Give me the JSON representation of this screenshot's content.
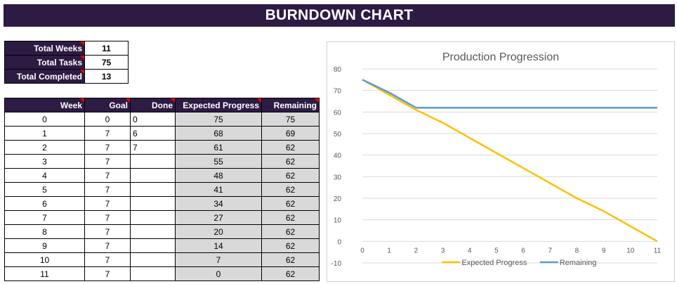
{
  "title": "BURNDOWN CHART",
  "summary": [
    {
      "label": "Total Weeks",
      "value": "11"
    },
    {
      "label": "Total Tasks",
      "value": "75"
    },
    {
      "label": "Total Completed",
      "value": "13"
    }
  ],
  "table": {
    "headers": {
      "week": "Week",
      "goal": "Goal",
      "done": "Done",
      "expected": "Expected Progress",
      "remaining": "Remaining"
    },
    "rows": [
      {
        "week": "0",
        "goal": "0",
        "done": "0",
        "expected": "75",
        "remaining": "75"
      },
      {
        "week": "1",
        "goal": "7",
        "done": "6",
        "expected": "68",
        "remaining": "69"
      },
      {
        "week": "2",
        "goal": "7",
        "done": "7",
        "expected": "61",
        "remaining": "62"
      },
      {
        "week": "3",
        "goal": "7",
        "done": "",
        "expected": "55",
        "remaining": "62"
      },
      {
        "week": "4",
        "goal": "7",
        "done": "",
        "expected": "48",
        "remaining": "62"
      },
      {
        "week": "5",
        "goal": "7",
        "done": "",
        "expected": "41",
        "remaining": "62"
      },
      {
        "week": "6",
        "goal": "7",
        "done": "",
        "expected": "34",
        "remaining": "62"
      },
      {
        "week": "7",
        "goal": "7",
        "done": "",
        "expected": "27",
        "remaining": "62"
      },
      {
        "week": "8",
        "goal": "7",
        "done": "",
        "expected": "20",
        "remaining": "62"
      },
      {
        "week": "9",
        "goal": "7",
        "done": "",
        "expected": "14",
        "remaining": "62"
      },
      {
        "week": "10",
        "goal": "7",
        "done": "",
        "expected": "7",
        "remaining": "62"
      },
      {
        "week": "11",
        "goal": "7",
        "done": "",
        "expected": "0",
        "remaining": "62"
      }
    ]
  },
  "chart_data": {
    "type": "line",
    "title": "Production Progression",
    "x": [
      0,
      1,
      2,
      3,
      4,
      5,
      6,
      7,
      8,
      9,
      10,
      11
    ],
    "series": [
      {
        "name": "Expected Progress",
        "color": "#ffc000",
        "values": [
          75,
          68,
          61,
          55,
          48,
          41,
          34,
          27,
          20,
          14,
          7,
          0
        ]
      },
      {
        "name": "Remaining",
        "color": "#5b9bd5",
        "values": [
          75,
          69,
          62,
          62,
          62,
          62,
          62,
          62,
          62,
          62,
          62,
          62
        ]
      }
    ],
    "ylim": [
      -10,
      80
    ],
    "yticks": [
      -10,
      0,
      10,
      20,
      30,
      40,
      50,
      60,
      70,
      80
    ],
    "grid": true,
    "legend_position": "bottom"
  },
  "colors": {
    "header_bg": "#2d1b44",
    "cell_shade": "#d9d9d9",
    "comment_marker": "#ff0000"
  }
}
